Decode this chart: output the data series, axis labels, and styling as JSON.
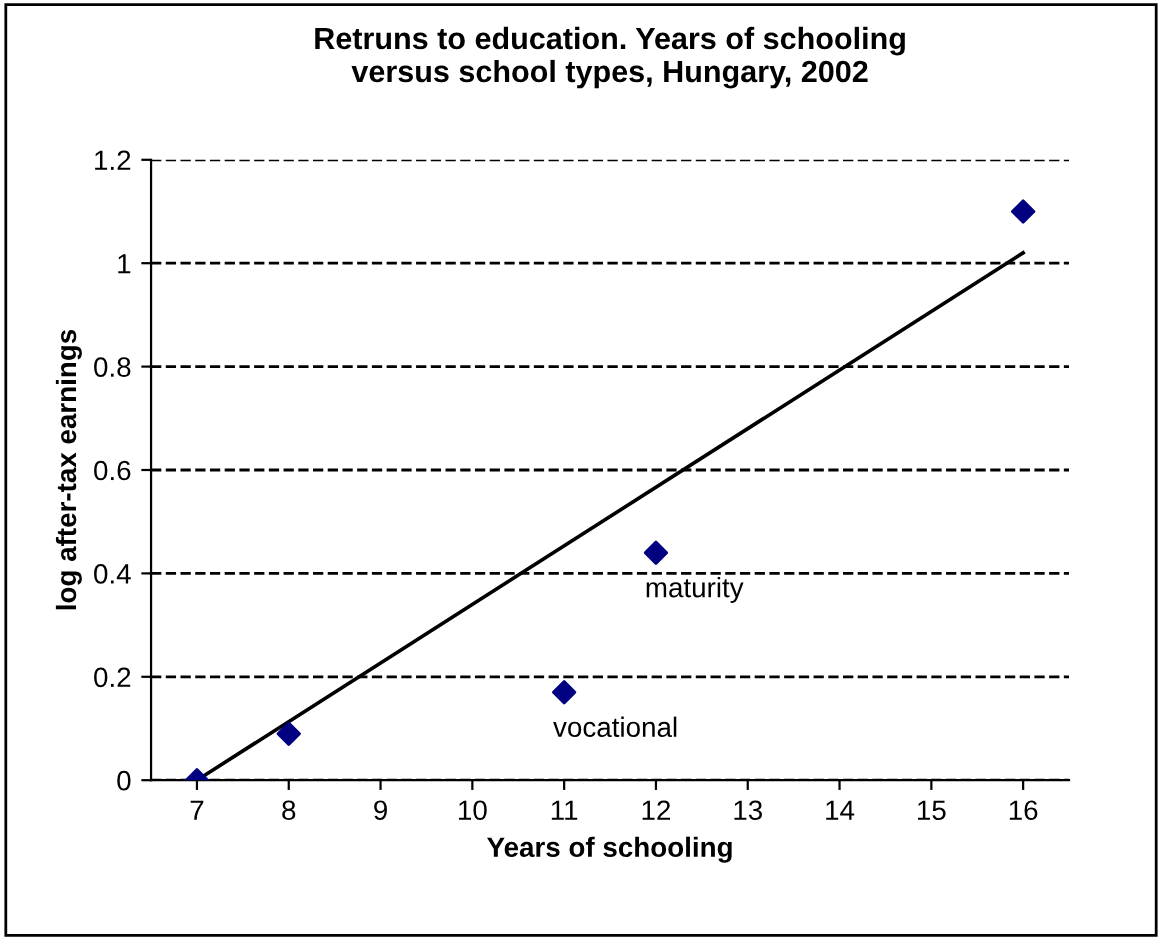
{
  "chart_data": {
    "type": "scatter",
    "title": "Retruns to education. Years of schooling\nversus school types, Hungary, 2002",
    "xlabel": "Years of schooling",
    "ylabel": "log after-tax earnings",
    "series": [
      {
        "color": "#000080",
        "marker": "diamond",
        "x": [
          7,
          8,
          11,
          12,
          16
        ],
        "values": [
          0.0,
          0.09,
          0.17,
          0.44,
          1.1
        ]
      },
      {
        "type": "line",
        "color": "#000000",
        "marker": "none",
        "line_style": "solid",
        "x": [
          7,
          16
        ],
        "values": [
          0.0,
          1.02
        ]
      }
    ],
    "annotations": [
      {
        "text": "vocational",
        "x": 11,
        "y": 0.17
      },
      {
        "text": "maturity",
        "x": 12,
        "y": 0.44
      }
    ],
    "xlim": [
      6.5,
      16.5
    ],
    "xticks": [
      7,
      8,
      9,
      10,
      11,
      12,
      13,
      14,
      15,
      16
    ],
    "ylim": [
      0,
      1.2
    ],
    "yticks": [
      0,
      0.2,
      0.4,
      0.6,
      0.8,
      1,
      1.2
    ],
    "grid": "y",
    "legend": false
  }
}
